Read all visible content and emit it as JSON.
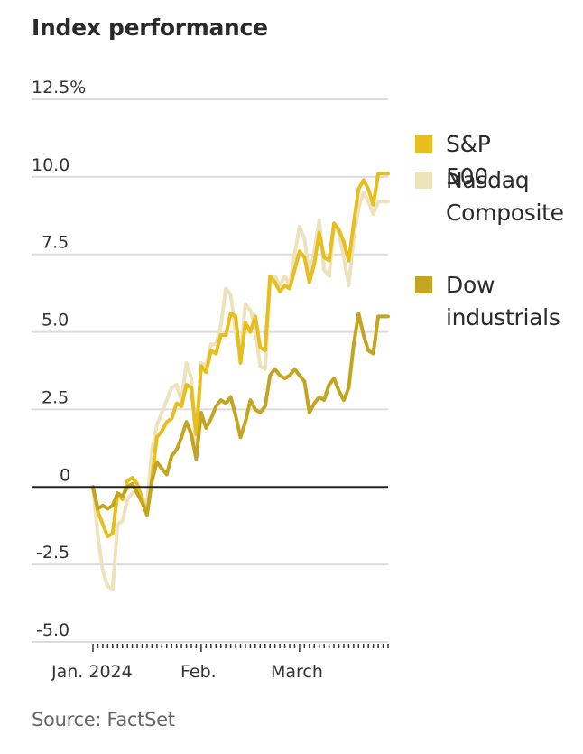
{
  "title": "Index performance",
  "source": "Source: FactSet",
  "chart_data": {
    "type": "line",
    "title": "Index performance",
    "xlabel": "",
    "ylabel": "",
    "ylim": [
      -5.0,
      12.5
    ],
    "yticks": [
      12.5,
      10.0,
      7.5,
      5.0,
      2.5,
      0,
      -2.5,
      -5.0
    ],
    "ytick_labels": [
      "12.5%",
      "10.0",
      "7.5",
      "5.0",
      "2.5",
      "0",
      "-2.5",
      "-5.0"
    ],
    "xtick_labels": [
      {
        "label": "Jan. 2024",
        "index": 0
      },
      {
        "label": "Feb.",
        "index": 22
      },
      {
        "label": "March",
        "index": 42
      }
    ],
    "x_count": 61,
    "grid": true,
    "legend_position": "right",
    "series": [
      {
        "name": "Nasdaq Composite",
        "color": "#EDE2BC",
        "values": [
          0,
          -1.6,
          -2.7,
          -3.2,
          -3.3,
          -1.2,
          -1.1,
          -0.4,
          -0.2,
          -0.1,
          -0.3,
          -0.6,
          1.2,
          2.0,
          2.4,
          2.8,
          3.2,
          3.3,
          2.8,
          4.0,
          3.5,
          1.2,
          4.0,
          3.9,
          4.6,
          4.6,
          5.2,
          6.4,
          6.2,
          5.0,
          4.2,
          5.9,
          5.7,
          5.1,
          3.9,
          3.8,
          6.6,
          6.8,
          6.5,
          6.8,
          6.5,
          7.5,
          8.4,
          8.0,
          6.8,
          7.6,
          8.6,
          7.0,
          6.8,
          8.4,
          8.2,
          7.4,
          6.5,
          8.0,
          9.0,
          9.5,
          9.2,
          8.8,
          9.2,
          9.2,
          9.2
        ]
      },
      {
        "name": "S&P 500",
        "color": "#E6BF1E",
        "values": [
          0,
          -0.8,
          -1.2,
          -1.6,
          -1.5,
          -0.2,
          -0.4,
          0.2,
          0.3,
          0.1,
          -0.4,
          -0.9,
          0.3,
          1.6,
          1.8,
          2.1,
          2.2,
          2.7,
          2.6,
          3.3,
          3.2,
          1.7,
          3.9,
          3.7,
          4.4,
          4.3,
          4.9,
          4.9,
          5.6,
          5.5,
          4.0,
          5.3,
          5.0,
          5.5,
          4.5,
          4.4,
          6.8,
          6.6,
          6.3,
          6.5,
          6.4,
          7.0,
          7.6,
          7.4,
          6.6,
          7.2,
          8.2,
          7.4,
          7.3,
          8.5,
          8.3,
          7.9,
          7.3,
          8.5,
          9.6,
          9.9,
          9.6,
          9.1,
          10.1,
          10.1,
          10.1
        ]
      },
      {
        "name": "Dow industrials",
        "color": "#C4A522",
        "values": [
          0,
          -0.7,
          -0.6,
          -0.7,
          -0.6,
          -0.2,
          -0.3,
          0,
          0.1,
          -0.2,
          -0.5,
          -0.9,
          0.2,
          0.8,
          0.6,
          0.4,
          1.0,
          1.2,
          1.6,
          2.1,
          1.7,
          0.9,
          2.4,
          1.9,
          2.2,
          2.6,
          2.8,
          2.7,
          2.9,
          2.3,
          1.6,
          2.1,
          2.8,
          2.5,
          2.4,
          2.6,
          3.6,
          3.8,
          3.6,
          3.5,
          3.6,
          3.8,
          3.6,
          3.4,
          2.4,
          2.7,
          2.9,
          2.8,
          3.3,
          3.5,
          3.1,
          2.8,
          3.2,
          4.6,
          5.6,
          4.9,
          4.4,
          4.3,
          5.5,
          5.5,
          5.5
        ]
      }
    ]
  },
  "legend": [
    {
      "label_lines": [
        "S&P 500"
      ],
      "color": "#E6BF1E"
    },
    {
      "label_lines": [
        "Nasdaq",
        "Composite"
      ],
      "color": "#EDE2BC"
    },
    {
      "label_lines": [
        "Dow",
        "industrials"
      ],
      "color": "#C4A522"
    }
  ]
}
